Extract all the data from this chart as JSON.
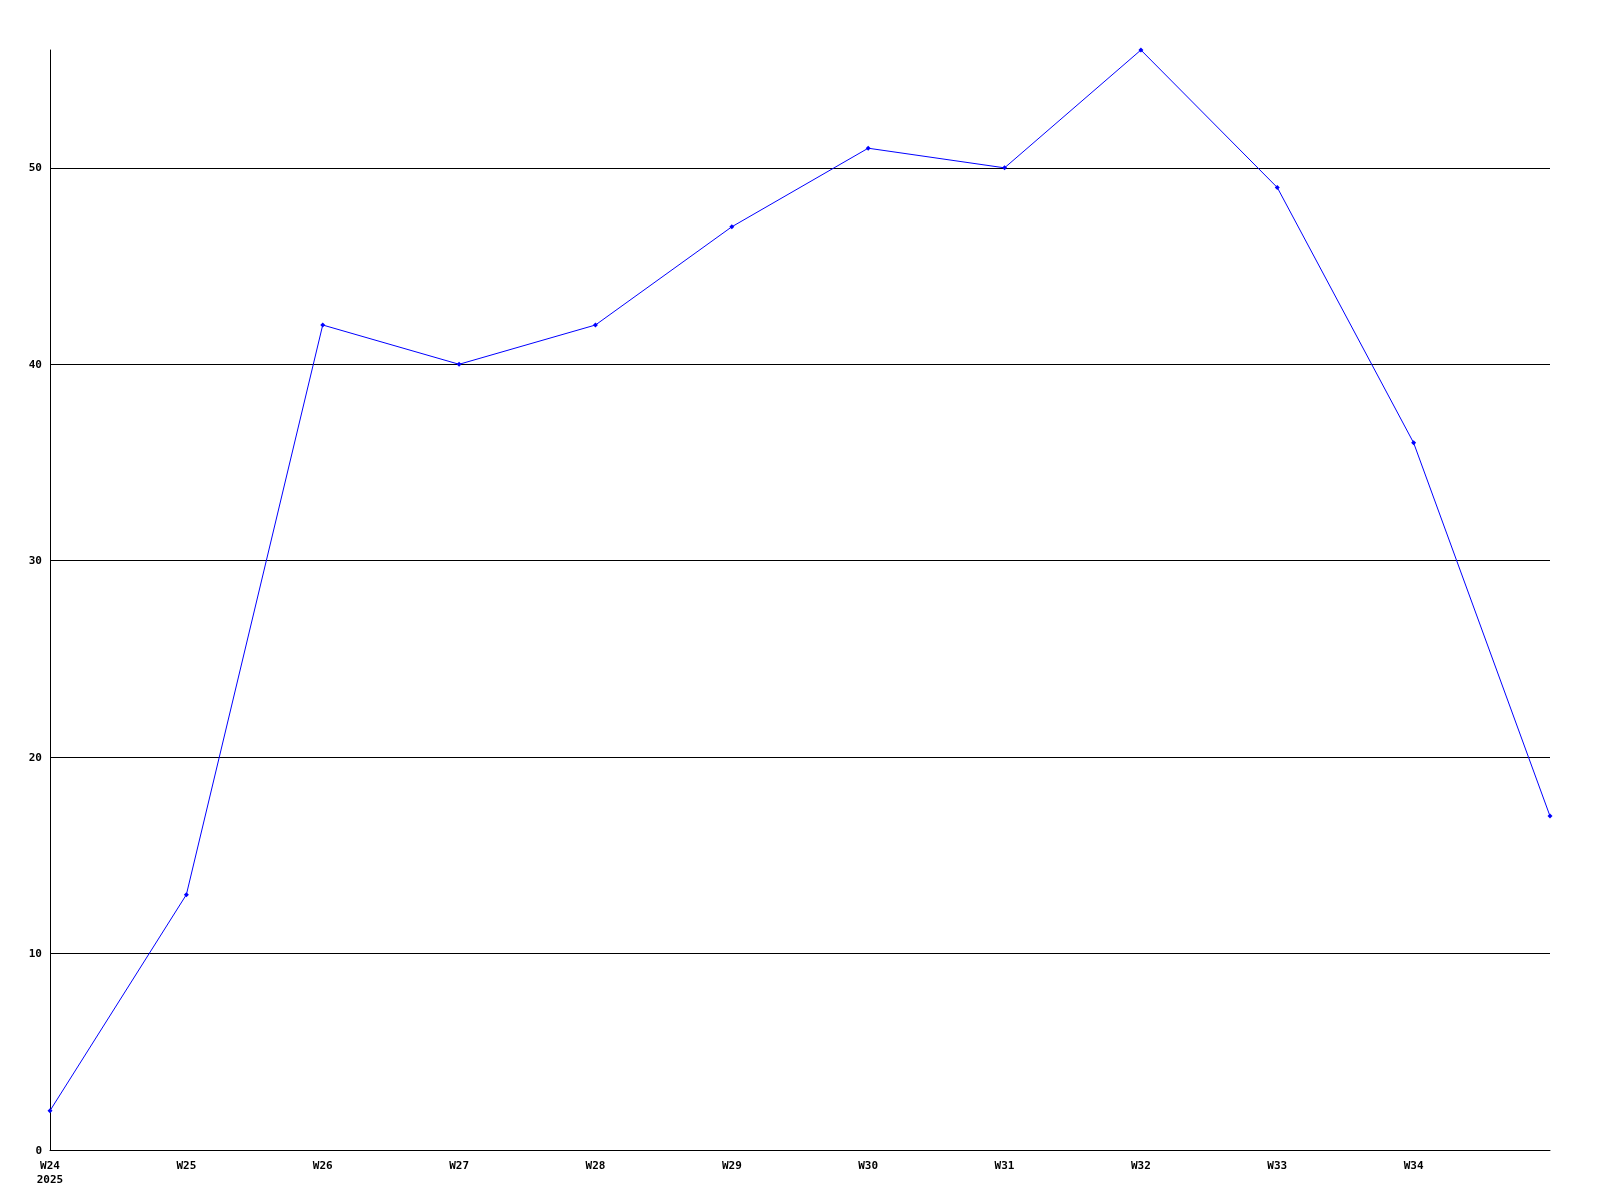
{
  "chart_data": {
    "type": "line",
    "categories": [
      "W24\n2025",
      "W25",
      "W26",
      "W27",
      "W28",
      "W29",
      "W30",
      "W31",
      "W32",
      "W33",
      "W34",
      null
    ],
    "series": [
      {
        "color": "#0000ff",
        "values": [
          2,
          13,
          42,
          40,
          42,
          47,
          51,
          50,
          56,
          49,
          36,
          17
        ]
      }
    ],
    "ylim": [
      0,
      56
    ],
    "yticks": [
      0,
      10,
      20,
      30,
      40,
      50
    ],
    "grid": "y",
    "marker": "diamond",
    "line_style": "solid"
  }
}
